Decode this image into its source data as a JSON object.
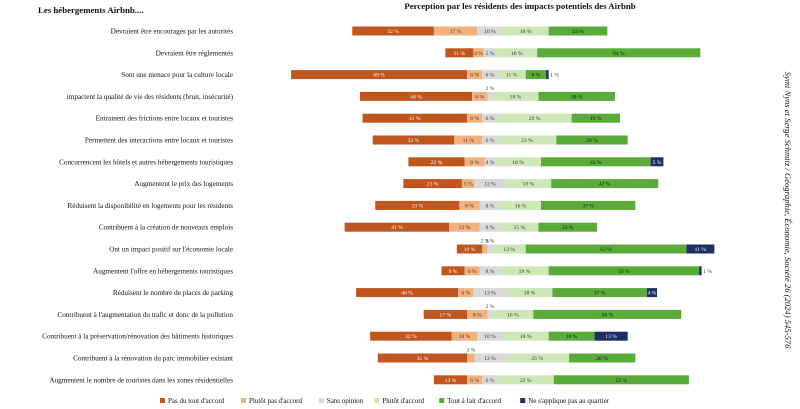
{
  "left_header": "Les hébergements Airbnb....",
  "side_note": "Symi Nyns et Serge Schmitz / Géographie, Économie, Société 26 (2024) 545-576",
  "chart_data": {
    "type": "bar",
    "orientation": "horizontal",
    "stacking": "diverging",
    "title": "Perception par les résidents des impacts potentiels des Airbnb",
    "categories": [
      "Devraient être encouragés par les autorités",
      "Devraient être réglementés",
      "Sont une menace pour la culture locale",
      "impactent la qualité de vie des résidents (bruit, insécurité)",
      "Entrainent des frictions entre locaux et touristes",
      "Permettent des interactions entre locaux et touristes",
      "Concurrencent les hôtels et autres hébergements touristiques",
      "Augmentent le prix des logements",
      "Réduisent la disponibilité en logements pour les résidents",
      "Contribuent à la création de nouveaux emplois",
      "Ont un impact positif sur l'économie locale",
      "Augmentent l'offre en hébergements touristiques",
      "Réduisent le nombre de places de parking",
      "Contribuent à l'augmentation du trafic et donc de la pollution",
      "Contribuent à la préservation/rénovation des bâtiments historiques",
      "Contribuent à la rénovation du parc immobilier existant",
      "Augmentent le nombre de touristes dans les zones résidentielles"
    ],
    "series": [
      {
        "name": "Pas du tout d'accord",
        "color": "#c0561f",
        "text_color": "#ffffff",
        "values": [
          32,
          11,
          69,
          44,
          41,
          32,
          22,
          23,
          33,
          41,
          10,
          9,
          40,
          17,
          32,
          35,
          13
        ]
      },
      {
        "name": "Plutôt pas d'accord",
        "color": "#f2b27d",
        "text_color": "#333333",
        "values": [
          17,
          4,
          6,
          6,
          6,
          11,
          8,
          5,
          8,
          12,
          2,
          6,
          6,
          8,
          10,
          3,
          6
        ]
      },
      {
        "name": "Sans opinion",
        "color": "#d9d9d9",
        "text_color": "#333333",
        "values": [
          10,
          5,
          6,
          2,
          6,
          6,
          4,
          12,
          8,
          8,
          2,
          8,
          13,
          2,
          10,
          12,
          6
        ]
      },
      {
        "name": "Plutôt d'accord",
        "color": "#cfe6b8",
        "text_color": "#333333",
        "values": [
          18,
          16,
          11,
          18,
          29,
          23,
          18,
          18,
          16,
          15,
          13,
          19,
          18,
          16,
          18,
          25,
          22
        ]
      },
      {
        "name": "Tout à fait d'accord",
        "color": "#5aab3a",
        "text_color": "#111111",
        "values": [
          23,
          64,
          8,
          30,
          19,
          28,
          43,
          42,
          37,
          23,
          63,
          59,
          37,
          58,
          18,
          26,
          53
        ]
      },
      {
        "name": "Ne s'applique pas au quartier",
        "color": "#1f2f66",
        "text_color": "#ffffff",
        "values": [
          0,
          0,
          1,
          0,
          0,
          0,
          5,
          0,
          0,
          0,
          11,
          1,
          4,
          0,
          13,
          0,
          0
        ]
      }
    ],
    "unit": "%",
    "legend_position": "bottom",
    "grid": false
  }
}
